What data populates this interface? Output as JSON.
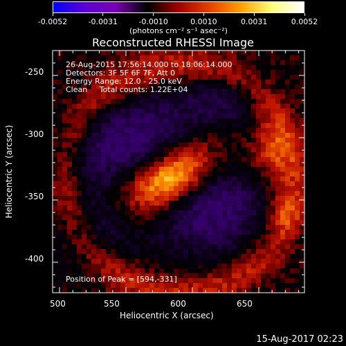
{
  "colorbar": {
    "tick_labels": [
      "-0.0052",
      "-0.0031",
      "-0.0010",
      "0.0010",
      "0.0031",
      "0.0052"
    ],
    "units": "(photons cm⁻² s⁻¹ asec⁻²)",
    "gradient": [
      "#0000ff",
      "#5a00d8",
      "#7a00b0",
      "#000000",
      "#a00000",
      "#e84000",
      "#ffa000",
      "#ffff80",
      "#ffffff"
    ]
  },
  "plot": {
    "title": "Reconstructed RHESSI Image",
    "info_lines": [
      "26-Aug-2015 17:56:14.000 to 18:06:14.000",
      "Detectors: 3F 5F 6F 7F, Att 0",
      "Energy Range: 12.0 - 25.0 keV",
      "Clean     Total counts: 1.22E+04"
    ],
    "peak_label": "Position of Peak = [594,-331]",
    "x_axis_label": "Heliocentric X (arcsec)",
    "y_axis_label": "Heliocentric Y (arcsec)",
    "x_ticks": [
      "500",
      "550",
      "600",
      "650"
    ],
    "y_ticks": [
      "-250",
      "-300",
      "-350",
      "-400"
    ]
  },
  "footer": {
    "timestamp": "15-Aug-2017 02:23"
  },
  "chart_data": {
    "type": "heatmap",
    "title": "Reconstructed RHESSI Image",
    "xlabel": "Heliocentric X (arcsec)",
    "ylabel": "Heliocentric Y (arcsec)",
    "xlim": [
      495,
      690
    ],
    "ylim": [
      -425,
      -237
    ],
    "x_ticks": [
      500,
      550,
      600,
      650
    ],
    "y_ticks": [
      -250,
      -300,
      -350,
      -400
    ],
    "color_range": [
      -0.0052,
      0.0052
    ],
    "peak": [
      594,
      -331
    ]
  }
}
